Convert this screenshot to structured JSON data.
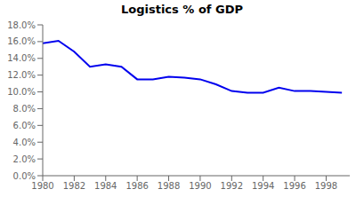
{
  "chart_data": {
    "type": "line",
    "title": "Logistics % of GDP",
    "x": [
      1980,
      1981,
      1982,
      1983,
      1984,
      1985,
      1986,
      1987,
      1988,
      1989,
      1990,
      1991,
      1992,
      1993,
      1994,
      1995,
      1996,
      1997,
      1998,
      1999
    ],
    "values": [
      0.158,
      0.161,
      0.148,
      0.13,
      0.133,
      0.13,
      0.115,
      0.115,
      0.118,
      0.117,
      0.115,
      0.109,
      0.101,
      0.099,
      0.099,
      0.105,
      0.101,
      0.101,
      0.1,
      0.099
    ],
    "color": "#0000EE",
    "xlim": [
      1980,
      1999.5
    ],
    "xticks": [
      1980,
      1982,
      1984,
      1986,
      1988,
      1990,
      1992,
      1994,
      1996,
      1998
    ],
    "ylim": [
      0.0,
      0.18
    ],
    "yticks": [
      {
        "value": 0.0,
        "label": "0.0%"
      },
      {
        "value": 0.02,
        "label": "2.0%"
      },
      {
        "value": 0.04,
        "label": "4.0%"
      },
      {
        "value": 0.06,
        "label": "6.0%"
      },
      {
        "value": 0.08,
        "label": "8.0%"
      },
      {
        "value": 0.1,
        "label": "10.0%"
      },
      {
        "value": 0.12,
        "label": "12.0%"
      },
      {
        "value": 0.14,
        "label": "14.0%"
      },
      {
        "value": 0.16,
        "label": "16.0%"
      },
      {
        "value": 0.18,
        "label": "18.0%"
      }
    ],
    "grid": false
  }
}
